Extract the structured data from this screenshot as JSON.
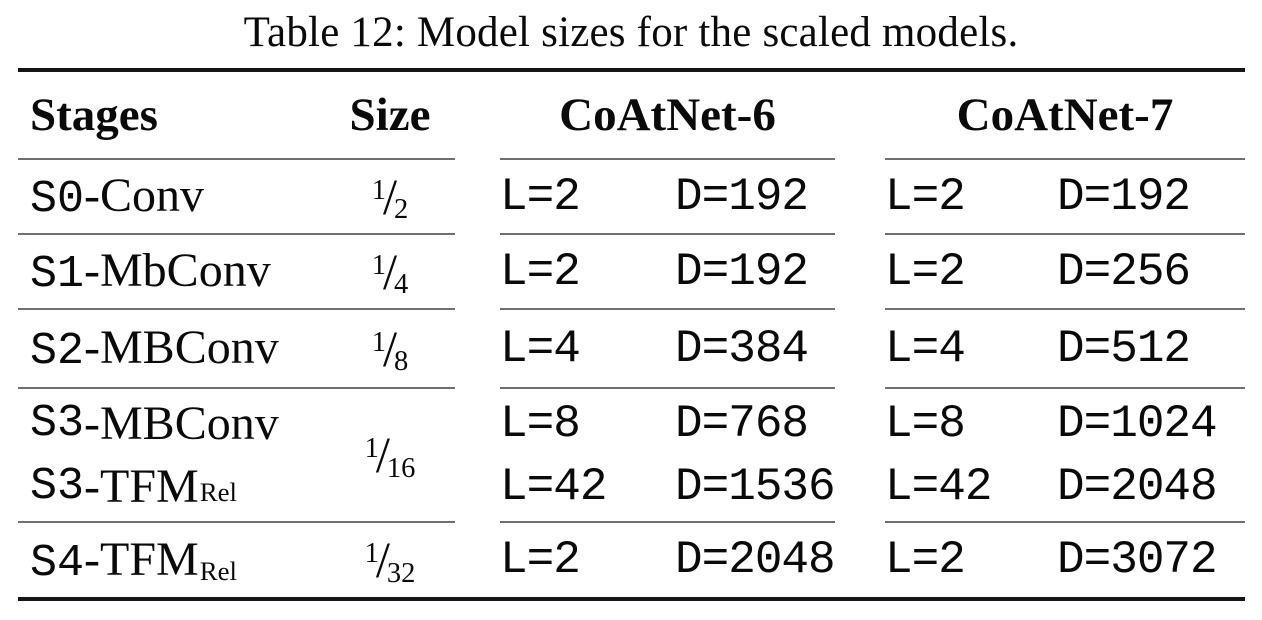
{
  "caption": "Table 12: Model sizes for the scaled models.",
  "table": {
    "headers": {
      "stages": "Stages",
      "size": "Size",
      "model1": "CoAtNet-6",
      "model2": "CoAtNet-7"
    },
    "rows": [
      {
        "stage_lines": [
          {
            "prefix": "S0",
            "text": "-Conv"
          }
        ],
        "size": {
          "num": "1",
          "den": "2"
        },
        "models": [
          {
            "lines": [
              {
                "l": "L=2",
                "d": "D=192"
              }
            ]
          },
          {
            "lines": [
              {
                "l": "L=2",
                "d": "D=192"
              }
            ]
          }
        ]
      },
      {
        "stage_lines": [
          {
            "prefix": "S1",
            "text": "-MbConv"
          }
        ],
        "size": {
          "num": "1",
          "den": "4"
        },
        "models": [
          {
            "lines": [
              {
                "l": "L=2",
                "d": "D=192"
              }
            ]
          },
          {
            "lines": [
              {
                "l": "L=2",
                "d": "D=256"
              }
            ]
          }
        ]
      },
      {
        "stage_lines": [
          {
            "prefix": "S2",
            "text": "-MBConv"
          }
        ],
        "size": {
          "num": "1",
          "den": "8"
        },
        "models": [
          {
            "lines": [
              {
                "l": "L=4",
                "d": "D=384"
              }
            ]
          },
          {
            "lines": [
              {
                "l": "L=4",
                "d": "D=512"
              }
            ]
          }
        ]
      },
      {
        "stage_lines": [
          {
            "prefix": "S3",
            "text": "-MBConv"
          },
          {
            "prefix": "S3",
            "text": "-TFM",
            "sub": "Rel"
          }
        ],
        "size": {
          "num": "1",
          "den": "16"
        },
        "models": [
          {
            "lines": [
              {
                "l": "L=8",
                "d": "D=768"
              },
              {
                "l": "L=42",
                "d": "D=1536"
              }
            ]
          },
          {
            "lines": [
              {
                "l": "L=8",
                "d": "D=1024"
              },
              {
                "l": "L=42",
                "d": "D=2048"
              }
            ]
          }
        ]
      },
      {
        "stage_lines": [
          {
            "prefix": "S4",
            "text": "-TFM",
            "sub": "Rel"
          }
        ],
        "size": {
          "num": "1",
          "den": "32"
        },
        "models": [
          {
            "lines": [
              {
                "l": "L=2",
                "d": "D=2048"
              }
            ]
          },
          {
            "lines": [
              {
                "l": "L=2",
                "d": "D=3072"
              }
            ]
          }
        ]
      }
    ]
  },
  "colors": {
    "text": "#0a0a0a",
    "rule_heavy": "#151515",
    "rule_light": "#6f6f6f",
    "background": "#ffffff"
  }
}
